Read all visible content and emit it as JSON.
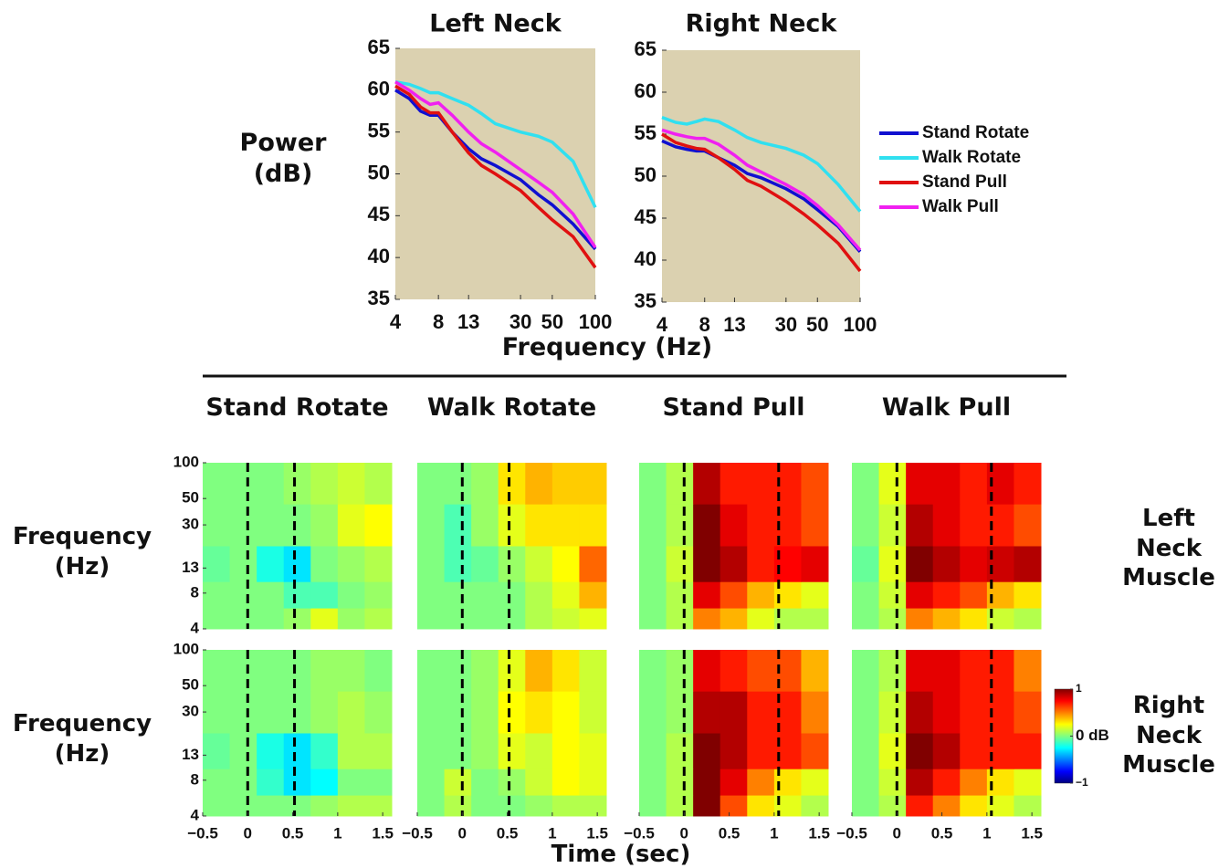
{
  "chart_data": [
    {
      "type": "line",
      "title": "Left Neck",
      "ylabel": "Power (dB)",
      "xlabel": "Frequency (Hz)",
      "log_x": true,
      "x": [
        4,
        5,
        6,
        7,
        8,
        10,
        13,
        16,
        20,
        30,
        40,
        50,
        70,
        100
      ],
      "xlim": [
        4,
        100
      ],
      "xticks": [
        4,
        8,
        13,
        30,
        50,
        100
      ],
      "ylim": [
        35,
        65
      ],
      "yticks": [
        35,
        40,
        45,
        50,
        55,
        60,
        65
      ],
      "background": "#dbd1b0",
      "series": [
        {
          "color": "#1010d0",
          "values": [
            60,
            59,
            57.5,
            57,
            57,
            55,
            53,
            51.8,
            51,
            49.3,
            47.5,
            46.3,
            44,
            41
          ]
        },
        {
          "color": "#30e0f0",
          "values": [
            61,
            60.7,
            60.2,
            59.7,
            59.7,
            59,
            58.2,
            57.2,
            56,
            55,
            54.5,
            53.8,
            51.5,
            46
          ]
        },
        {
          "color": "#e01010",
          "values": [
            60.5,
            59.5,
            58,
            57.3,
            57.3,
            55,
            52.5,
            51,
            50,
            48,
            46,
            44.5,
            42.5,
            38.8
          ]
        },
        {
          "color": "#f020f0",
          "values": [
            61,
            60,
            59,
            58.3,
            58.5,
            57,
            55,
            53.6,
            52.6,
            50.5,
            49,
            47.8,
            45.2,
            41.2
          ]
        }
      ]
    },
    {
      "type": "line",
      "title": "Right Neck",
      "log_x": true,
      "legend": "right",
      "x": [
        4,
        5,
        6,
        7,
        8,
        10,
        13,
        16,
        20,
        30,
        40,
        50,
        70,
        100
      ],
      "xlim": [
        4,
        100
      ],
      "xticks": [
        4,
        8,
        13,
        30,
        50,
        100
      ],
      "ylim": [
        35,
        65
      ],
      "yticks": [
        35,
        40,
        45,
        50,
        55,
        60,
        65
      ],
      "background": "#dbd1b0",
      "series": [
        {
          "name": "Stand Rotate",
          "color": "#1010d0",
          "values": [
            54.2,
            53.5,
            53.2,
            53,
            53,
            52.2,
            51.3,
            50.3,
            49.8,
            48.5,
            47.3,
            46,
            44,
            41
          ]
        },
        {
          "name": "Walk Rotate",
          "color": "#30e0f0",
          "values": [
            57,
            56.4,
            56.2,
            56.5,
            56.8,
            56.5,
            55.5,
            54.6,
            54,
            53.3,
            52.5,
            51.5,
            49,
            45.8
          ]
        },
        {
          "name": "Stand Pull",
          "color": "#e01010",
          "values": [
            55,
            54,
            53.6,
            53.3,
            53.2,
            52.2,
            50.8,
            49.5,
            48.8,
            47,
            45.5,
            44.2,
            42,
            38.7
          ]
        },
        {
          "name": "Walk Pull",
          "color": "#f020f0",
          "values": [
            55.5,
            55,
            54.7,
            54.5,
            54.5,
            53.8,
            52.5,
            51.3,
            50.5,
            49,
            47.8,
            46.5,
            44.2,
            41.2
          ]
        }
      ]
    },
    {
      "type": "heatmap-grid",
      "colormap": "jet",
      "log_y": true,
      "columns": [
        "Stand Rotate",
        "Walk Rotate",
        "Stand Pull",
        "Walk Pull"
      ],
      "rows": [
        "Left Neck Muscle",
        "Right Neck Muscle"
      ],
      "ylabel": "Frequency (Hz)",
      "xlabel": "Time (sec)",
      "xlim": [
        -0.5,
        1.6
      ],
      "xticks": [
        {
          "value": -0.5,
          "label": "−0.5"
        },
        0,
        0.5,
        1,
        1.5
      ],
      "ylim": [
        4,
        100
      ],
      "yticks": [
        4,
        8,
        13,
        30,
        50,
        100
      ],
      "bins_x": [
        -0.5,
        -0.2,
        0.1,
        0.4,
        0.7,
        1.0,
        1.3,
        1.6
      ],
      "bins_y": [
        4,
        6,
        10,
        20,
        45,
        100
      ],
      "events": [
        [
          0,
          0.52
        ],
        [
          0,
          0.52
        ],
        [
          0,
          1.05
        ],
        [
          0,
          1.05
        ]
      ],
      "clim": [
        -1,
        1
      ],
      "cticks": [
        {
          "value": -1,
          "label": "−1"
        },
        {
          "value": 0,
          "label": "0 dB"
        },
        1
      ],
      "panels": [
        [
          [
            [
              0,
              0,
              0,
              0.05,
              0.2,
              0.05,
              0.1
            ],
            [
              0,
              0,
              0,
              -0.1,
              -0.1,
              0,
              0.05
            ],
            [
              -0.05,
              0,
              -0.2,
              -0.3,
              0,
              0.05,
              0.1
            ],
            [
              0,
              0,
              0,
              0,
              0.05,
              0.2,
              0.25
            ],
            [
              0,
              0,
              0,
              0.05,
              0.1,
              0.15,
              0.1
            ]
          ],
          [
            [
              0,
              0,
              0,
              0,
              0.1,
              0.15,
              0.2
            ],
            [
              0,
              0,
              0,
              0,
              0.1,
              0.2,
              0.4
            ],
            [
              0,
              -0.1,
              -0.05,
              0.05,
              0.15,
              0.25,
              0.55
            ],
            [
              0,
              -0.1,
              0.05,
              0.2,
              0.3,
              0.3,
              0.3
            ],
            [
              0,
              0,
              0.05,
              0.3,
              0.4,
              0.35,
              0.35
            ]
          ],
          [
            [
              0,
              0.1,
              0.5,
              0.4,
              0.2,
              0.1,
              0.1
            ],
            [
              0,
              0.1,
              0.8,
              0.6,
              0.4,
              0.3,
              0.2
            ],
            [
              0,
              0.15,
              1,
              0.9,
              0.7,
              0.75,
              0.8
            ],
            [
              0,
              0.1,
              1,
              0.8,
              0.7,
              0.7,
              0.6
            ],
            [
              0,
              0.1,
              0.9,
              0.7,
              0.7,
              0.7,
              0.6
            ]
          ],
          [
            [
              0,
              0.1,
              0.5,
              0.4,
              0.3,
              0.15,
              0.1
            ],
            [
              0,
              0.15,
              0.8,
              0.7,
              0.6,
              0.4,
              0.3
            ],
            [
              -0.05,
              0.2,
              1,
              0.9,
              0.8,
              0.85,
              0.9
            ],
            [
              0,
              0.15,
              0.9,
              0.8,
              0.7,
              0.7,
              0.6
            ],
            [
              0,
              0.2,
              0.8,
              0.8,
              0.7,
              0.8,
              0.7
            ]
          ]
        ],
        [
          [
            [
              0,
              0,
              0,
              0,
              0.05,
              0.1,
              0.1
            ],
            [
              0,
              0,
              -0.15,
              -0.3,
              -0.25,
              0,
              0
            ],
            [
              -0.05,
              0,
              -0.2,
              -0.3,
              -0.15,
              0.1,
              0.1
            ],
            [
              0,
              0,
              0,
              0,
              0.05,
              0.1,
              0.05
            ],
            [
              0,
              0,
              0,
              0,
              0.05,
              0.05,
              0
            ]
          ],
          [
            [
              0,
              0.1,
              0,
              0,
              0.05,
              0.1,
              0.1
            ],
            [
              0,
              0.15,
              0,
              0.05,
              0.15,
              0.25,
              0.2
            ],
            [
              0,
              0,
              0.05,
              0.2,
              0.15,
              0.25,
              0.2
            ],
            [
              0,
              0,
              0.05,
              0.25,
              0.3,
              0.25,
              0.15
            ],
            [
              0,
              0,
              0.05,
              0.2,
              0.4,
              0.3,
              0.15
            ]
          ],
          [
            [
              0,
              0.1,
              1,
              0.6,
              0.3,
              0.2,
              0.1
            ],
            [
              0,
              0.1,
              1,
              0.8,
              0.5,
              0.3,
              0.2
            ],
            [
              0,
              0.1,
              1,
              0.9,
              0.7,
              0.7,
              0.6
            ],
            [
              0,
              0.05,
              0.9,
              0.9,
              0.7,
              0.7,
              0.5
            ],
            [
              0,
              0.05,
              0.8,
              0.7,
              0.6,
              0.6,
              0.4
            ]
          ],
          [
            [
              0,
              0.1,
              0.7,
              0.5,
              0.3,
              0.2,
              0.1
            ],
            [
              0,
              0.15,
              0.9,
              0.7,
              0.5,
              0.3,
              0.2
            ],
            [
              0,
              0.2,
              1,
              0.9,
              0.7,
              0.7,
              0.7
            ],
            [
              0,
              0.15,
              0.9,
              0.8,
              0.7,
              0.7,
              0.6
            ],
            [
              0,
              0.1,
              0.8,
              0.8,
              0.7,
              0.7,
              0.5
            ]
          ]
        ]
      ]
    }
  ]
}
